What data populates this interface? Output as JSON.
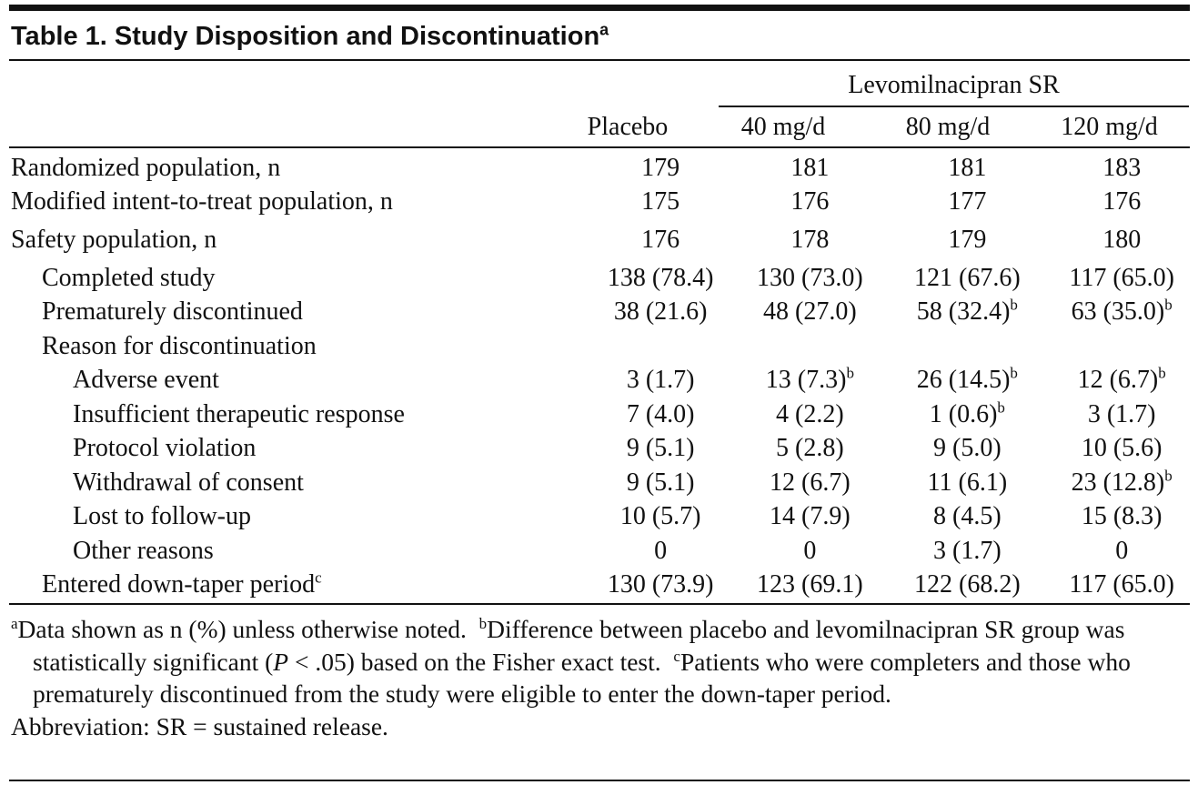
{
  "title": {
    "text": "Table 1. Study Disposition and Discontinuation",
    "sup": "a"
  },
  "header": {
    "group": "Levomilnacipran SR",
    "columns": [
      "Placebo",
      "40 mg/d",
      "80 mg/d",
      "120 mg/d"
    ]
  },
  "rows": [
    {
      "label": "Randomized population, n",
      "cells": [
        "179",
        "181",
        "181",
        "183"
      ]
    },
    {
      "label": "Modified intent-to-treat population, n",
      "cells": [
        "175",
        "176",
        "177",
        "176"
      ]
    },
    {
      "label": "Safety population, n",
      "cells": [
        "176",
        "178",
        "179",
        "180"
      ]
    },
    {
      "label": "Completed study",
      "cells": [
        "138 (78.4)",
        "130 (73.0)",
        "121 (67.6)",
        "117 (65.0)"
      ]
    },
    {
      "label": "Prematurely discontinued",
      "cells": [
        "38 (21.6)",
        "48 (27.0)",
        {
          "text": "58 (32.4)",
          "sup": "b"
        },
        {
          "text": "63 (35.0)",
          "sup": "b"
        }
      ]
    },
    {
      "label": "Reason for discontinuation"
    },
    {
      "label": "Adverse event",
      "cells": [
        "3 (1.7)",
        {
          "text": "13 (7.3)",
          "sup": "b"
        },
        {
          "text": "26 (14.5)",
          "sup": "b"
        },
        {
          "text": "12 (6.7)",
          "sup": "b"
        }
      ]
    },
    {
      "label": "Insufficient therapeutic response",
      "cells": [
        "7 (4.0)",
        "4 (2.2)",
        {
          "text": "1 (0.6)",
          "sup": "b"
        },
        "3 (1.7)"
      ]
    },
    {
      "label": "Protocol violation",
      "cells": [
        "9 (5.1)",
        "5 (2.8)",
        "9 (5.0)",
        "10 (5.6)"
      ]
    },
    {
      "label": "Withdrawal of consent",
      "cells": [
        "9 (5.1)",
        "12 (6.7)",
        "11 (6.1)",
        {
          "text": "23 (12.8)",
          "sup": "b"
        }
      ]
    },
    {
      "label": "Lost to follow-up",
      "cells": [
        "10 (5.7)",
        "14 (7.9)",
        "8 (4.5)",
        "15 (8.3)"
      ]
    },
    {
      "label": "Other reasons",
      "cells": [
        "0",
        "0",
        "3 (1.7)",
        "0"
      ]
    },
    {
      "label": {
        "text": "Entered down-taper period",
        "sup": "c"
      },
      "cells": [
        "130 (73.9)",
        "123 (69.1)",
        "122 (68.2)",
        "117 (65.0)"
      ]
    }
  ],
  "footnotes": [
    {
      "mark": "a",
      "text": "Data shown as n (%) unless otherwise noted."
    },
    {
      "mark": "b",
      "text": "Difference between placebo and levomilnacipran SR group was statistically significant (",
      "italic": "P",
      "after": " < .05) based on the Fisher exact test."
    },
    {
      "mark": "c",
      "text": "Patients who were completers and those who prematurely discontinued from the study were eligible to enter the down-taper period."
    }
  ],
  "abbreviation": "Abbreviation: SR = sustained release."
}
